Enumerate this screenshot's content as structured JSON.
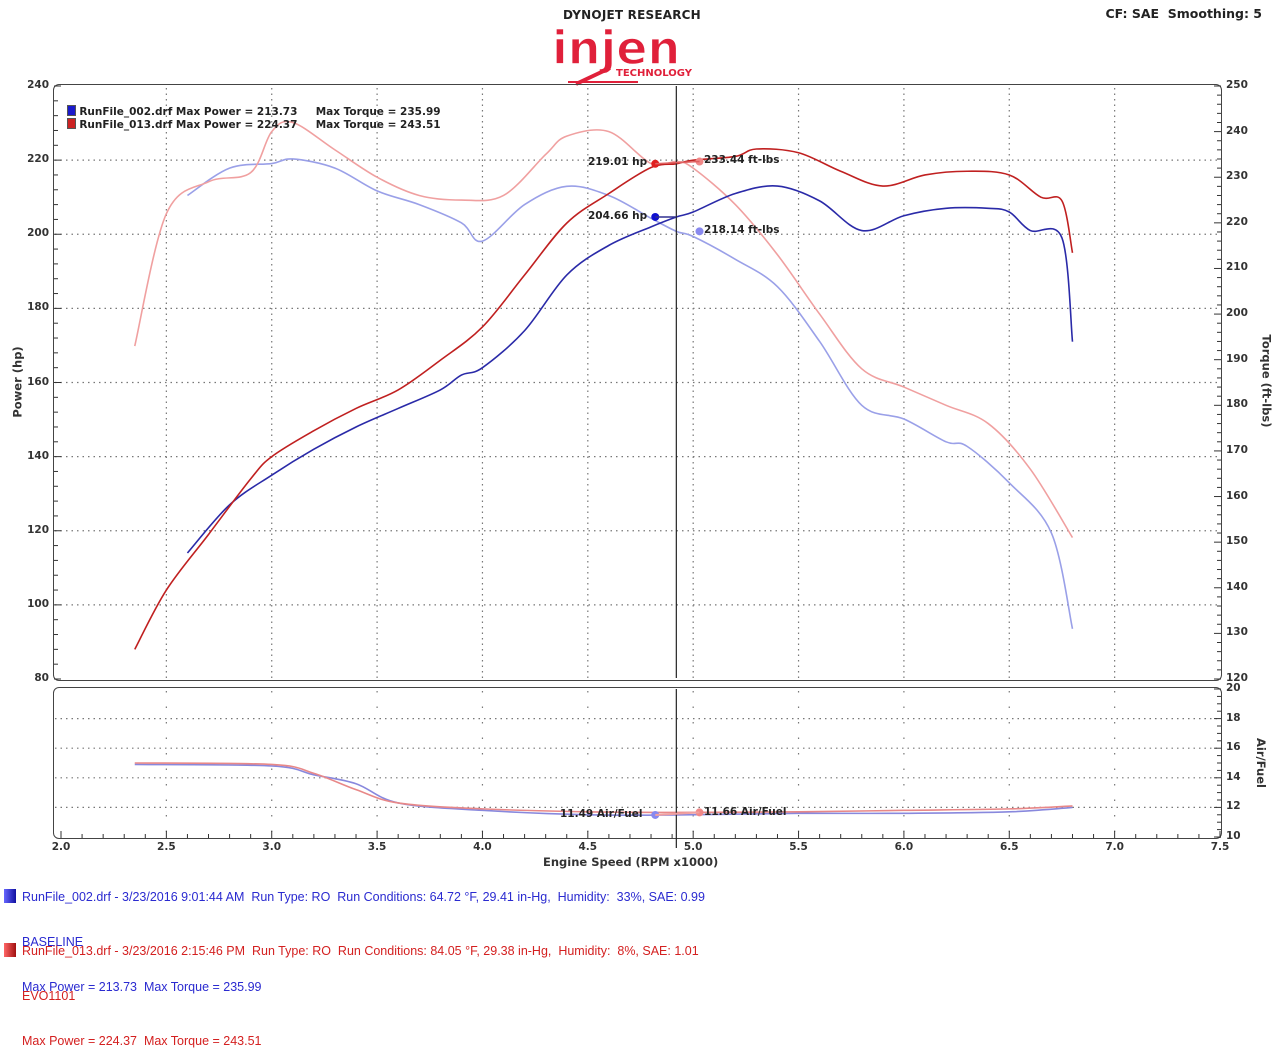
{
  "header": {
    "brand_top": "DYNOJET RESEARCH",
    "logo_text": "injen",
    "logo_sub": "TECHNOLOGY",
    "settings": "CF: SAE  Smoothing: 5"
  },
  "legend": {
    "run1": {
      "label": "RunFile_002.drf Max Power = 213.73     Max Torque = 235.99",
      "color": "#1a1acc"
    },
    "run2": {
      "label": "RunFile_013.drf Max Power = 224.37     Max Torque = 243.51",
      "color": "#cc2222"
    }
  },
  "cursor": {
    "rpm": 4.92,
    "labels": {
      "run2_power": "219.01 hp",
      "run2_torque": "233.44 ft-lbs",
      "run1_power": "204.66 hp",
      "run1_torque": "218.14 ft-lbs",
      "run1_afr": "11.49 Air/Fuel",
      "run2_afr": "11.66 Air/Fuel"
    }
  },
  "axes": {
    "x_title": "Engine Speed (RPM x1000)",
    "x_overlap_text": "Engine Speed (RPM x1000)",
    "x_ticks": [
      "2.0",
      "2.5",
      "3.0",
      "3.5",
      "4.0",
      "4.5",
      "5.0",
      "5.5",
      "6.0",
      "6.5",
      "7.0",
      "7.5"
    ],
    "left_title": "Power (hp)",
    "left_ticks": [
      "240",
      "220",
      "200",
      "180",
      "160",
      "140",
      "120",
      "100",
      "80"
    ],
    "right_title": "Torque (ft-lbs)",
    "right_ticks": [
      "250",
      "240",
      "230",
      "220",
      "210",
      "200",
      "190",
      "180",
      "170",
      "160",
      "150",
      "140",
      "130",
      "120"
    ],
    "afr_title": "Air/Fuel",
    "afr_ticks": [
      "20",
      "18",
      "16",
      "14",
      "12",
      "10"
    ]
  },
  "footer": {
    "run1": {
      "line1": "RunFile_002.drf - 3/23/2016 9:01:44 AM  Run Type: RO  Run Conditions: 64.72 °F, 29.41 in-Hg,  Humidity:  33%, SAE: 0.99",
      "line2": "BASELINE",
      "line3": "Max Power = 213.73  Max Torque = 235.99",
      "color": "#2a2ad0"
    },
    "run2": {
      "line1": "RunFile_013.drf - 3/23/2016 2:15:46 PM  Run Type: RO  Run Conditions: 84.05 °F, 29.38 in-Hg,  Humidity:  8%, SAE: 1.01",
      "line2": "EVO1101",
      "line3": "Max Power = 224.37  Max Torque = 243.51",
      "color": "#d42020"
    }
  },
  "chart_data": {
    "type": "line",
    "title": "Dynojet Research dyno chart — Injen Technology",
    "xlabel": "Engine Speed (RPM x1000)",
    "ylabel": "Power (hp)",
    "y2label": "Torque (ft-lbs)",
    "y3label": "Air/Fuel",
    "xlim": [
      2.0,
      7.5
    ],
    "ylim": [
      80,
      240
    ],
    "y2lim": [
      120,
      250
    ],
    "y3lim": [
      10,
      20
    ],
    "grid": true,
    "legend_position": "top-left",
    "series": [
      {
        "name": "RunFile_002.drf Power (hp)",
        "color": "#2a2aa8",
        "axis": "left",
        "x": [
          2.6,
          2.8,
          3.0,
          3.2,
          3.4,
          3.6,
          3.8,
          3.9,
          4.0,
          4.2,
          4.4,
          4.6,
          4.8,
          4.92,
          5.0,
          5.2,
          5.4,
          5.6,
          5.8,
          6.0,
          6.2,
          6.4,
          6.5,
          6.6,
          6.75,
          6.8
        ],
        "values": [
          114,
          127,
          135,
          142,
          148,
          153,
          158,
          162,
          164,
          174,
          189,
          197,
          202,
          204.66,
          206,
          211,
          213,
          209,
          201,
          205,
          207,
          207,
          206,
          201,
          199,
          171
        ]
      },
      {
        "name": "RunFile_013.drf Power (hp)",
        "color": "#c02020",
        "axis": "left",
        "x": [
          2.35,
          2.5,
          2.7,
          2.9,
          3.0,
          3.2,
          3.4,
          3.6,
          3.8,
          4.0,
          4.2,
          4.4,
          4.6,
          4.8,
          4.92,
          5.0,
          5.2,
          5.3,
          5.5,
          5.7,
          5.9,
          6.1,
          6.3,
          6.5,
          6.65,
          6.75,
          6.8
        ],
        "values": [
          88,
          104,
          119,
          134,
          140,
          147,
          153,
          158,
          166,
          175,
          189,
          203,
          211,
          218,
          219.01,
          220,
          221,
          223,
          222,
          217,
          213,
          216,
          217,
          216,
          210,
          209,
          195
        ]
      },
      {
        "name": "RunFile_002.drf Torque (ft-lbs)",
        "color": "#9aa0e8",
        "axis": "right",
        "x": [
          2.6,
          2.8,
          3.0,
          3.1,
          3.3,
          3.5,
          3.7,
          3.9,
          4.0,
          4.2,
          4.4,
          4.6,
          4.8,
          4.92,
          5.0,
          5.2,
          5.4,
          5.6,
          5.8,
          6.0,
          6.2,
          6.3,
          6.5,
          6.7,
          6.8
        ],
        "values": [
          226,
          232,
          233,
          234,
          232,
          227,
          224,
          220,
          216,
          224,
          228,
          226,
          221,
          218.14,
          217,
          212,
          206,
          194,
          180,
          177,
          172,
          171,
          163,
          152,
          131
        ]
      },
      {
        "name": "RunFile_013.drf Torque (ft-lbs)",
        "color": "#f0a0a0",
        "axis": "right",
        "x": [
          2.35,
          2.5,
          2.7,
          2.9,
          3.0,
          3.1,
          3.3,
          3.5,
          3.7,
          3.9,
          4.1,
          4.3,
          4.4,
          4.6,
          4.8,
          4.92,
          5.0,
          5.2,
          5.4,
          5.6,
          5.8,
          6.0,
          6.2,
          6.4,
          6.6,
          6.8
        ],
        "values": [
          193,
          222,
          229,
          231,
          240,
          242,
          236,
          230,
          226,
          225,
          226,
          235,
          239,
          240,
          233,
          233.44,
          232,
          224,
          213,
          200,
          188,
          184,
          180,
          176,
          166,
          151
        ]
      },
      {
        "name": "RunFile_002.drf Air/Fuel",
        "color": "#8888dd",
        "axis": "afr",
        "x": [
          2.35,
          3.0,
          3.2,
          3.4,
          3.6,
          4.0,
          4.5,
          4.92,
          5.5,
          6.0,
          6.5,
          6.8
        ],
        "values": [
          14.9,
          14.8,
          14.2,
          13.6,
          12.3,
          11.8,
          11.5,
          11.49,
          11.6,
          11.6,
          11.7,
          12.0
        ]
      },
      {
        "name": "RunFile_013.drf Air/Fuel",
        "color": "#e88888",
        "axis": "afr",
        "x": [
          2.35,
          3.0,
          3.2,
          3.4,
          3.6,
          4.0,
          4.5,
          4.92,
          5.5,
          6.0,
          6.5,
          6.8
        ],
        "values": [
          15.0,
          14.9,
          14.3,
          13.2,
          12.3,
          11.9,
          11.7,
          11.66,
          11.7,
          11.8,
          11.9,
          12.1
        ]
      }
    ]
  }
}
